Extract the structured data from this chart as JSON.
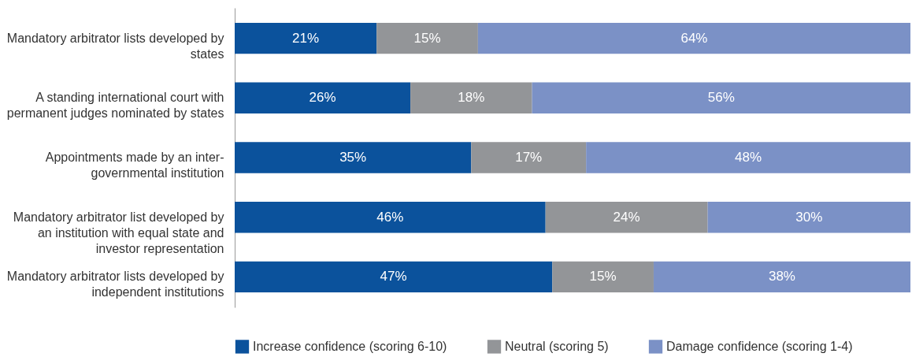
{
  "chart_data": {
    "type": "bar",
    "orientation": "horizontal",
    "stacked": true,
    "legend": "bottom",
    "categories": [
      "Mandatory arbitrator lists developed by states",
      "A standing international court with permanent judges nominated by states",
      "Appointments made by an inter-governmental institution",
      "Mandatory arbitrator list developed by an institution with equal state and investor representation",
      "Mandatory arbitrator lists developed by independent institutions"
    ],
    "series": [
      {
        "name": "Increase confidence (scoring 6-10)",
        "color": "#0b529c",
        "values": [
          21,
          26,
          35,
          46,
          47
        ],
        "value_labels": [
          "21%",
          "26%",
          "35%",
          "46%",
          "47%"
        ]
      },
      {
        "name": "Neutral (scoring 5)",
        "color": "#939598",
        "values": [
          15,
          18,
          17,
          24,
          15
        ],
        "value_labels": [
          "15%",
          "18%",
          "17%",
          "24%",
          "15%"
        ]
      },
      {
        "name": "Damage confidence (scoring 1-4)",
        "color": "#7b91c6",
        "values": [
          64,
          56,
          48,
          30,
          38
        ],
        "value_labels": [
          "64%",
          "56%",
          "48%",
          "30%",
          "38%"
        ]
      }
    ]
  }
}
